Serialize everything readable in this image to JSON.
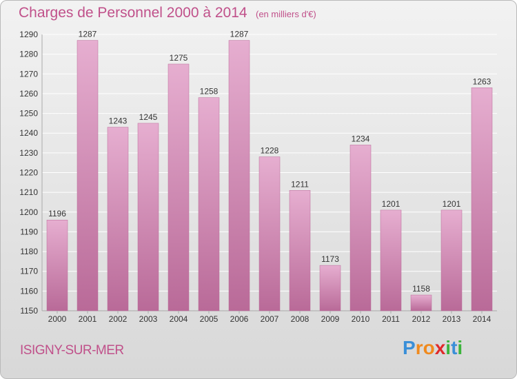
{
  "title": "Charges de Personnel 2000 à 2014",
  "subtitle": "(en milliers d'€)",
  "commune": "ISIGNY-SUR-MER",
  "logo": {
    "letters": [
      "P",
      "r",
      "o",
      "x",
      "i",
      "t",
      "i"
    ],
    "colors": [
      "#3a8fd8",
      "#f08a1e",
      "#f08a1e",
      "#e02a2a",
      "#3cb43c",
      "#3a8fd8",
      "#3cb43c"
    ]
  },
  "colors": {
    "bar": "#d98bb7",
    "bar_light": "#e6aed0",
    "bar_dark": "#b96a98",
    "text": "#c0508a"
  },
  "chart_data": {
    "type": "bar",
    "categories": [
      "2000",
      "2001",
      "2002",
      "2003",
      "2004",
      "2005",
      "2006",
      "2007",
      "2008",
      "2009",
      "2010",
      "2011",
      "2012",
      "2013",
      "2014"
    ],
    "values": [
      1196,
      1287,
      1243,
      1245,
      1275,
      1258,
      1287,
      1228,
      1211,
      1173,
      1234,
      1201,
      1158,
      1201,
      1263
    ],
    "ylim": [
      1150,
      1290
    ],
    "yticks": [
      1150,
      1160,
      1170,
      1180,
      1190,
      1200,
      1210,
      1220,
      1230,
      1240,
      1250,
      1260,
      1270,
      1280,
      1290
    ],
    "grid": true,
    "data_labels": true
  }
}
